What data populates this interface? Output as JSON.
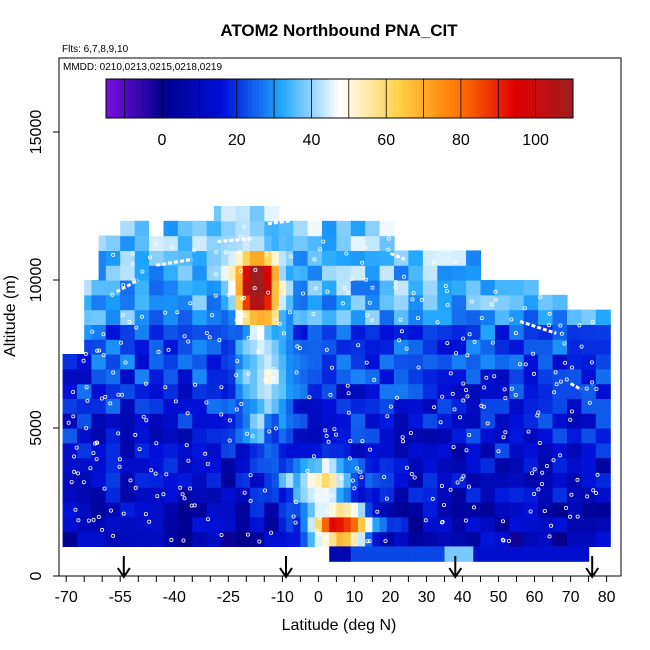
{
  "chart_data": {
    "type": "heatmap",
    "title": "ATOM2 Northbound PNA_CIT",
    "annotations": [
      "Flts: 6,7,8,9,10",
      "MMDD: 0210,0213,0215,0218,0219"
    ],
    "xlabel": "Latitude (deg N)",
    "ylabel": "Altitude (m)",
    "xlim": [
      -72,
      84
    ],
    "ylim": [
      0,
      17500
    ],
    "x_ticks": [
      -70,
      -55,
      -40,
      -25,
      -10,
      0,
      10,
      20,
      30,
      40,
      50,
      60,
      70,
      80
    ],
    "x_tick_labels": [
      "-70",
      "-55",
      "-40",
      "-25",
      "-10",
      "0",
      "10",
      "20",
      "30",
      "40",
      "50",
      "60",
      "70",
      "80"
    ],
    "y_ticks": [
      0,
      5000,
      10000,
      15000
    ],
    "y_tick_labels": [
      "0",
      "5000",
      "10000",
      "15000"
    ],
    "colorbar": {
      "range": [
        -15,
        110
      ],
      "ticks": [
        0,
        20,
        40,
        60,
        80,
        100
      ],
      "tick_labels": [
        "0",
        "20",
        "40",
        "60",
        "80",
        "100"
      ],
      "colors": [
        "#7c10e0",
        "#00008c",
        "#0010d8",
        "#1fa6ff",
        "#ffffff",
        "#ffd24a",
        "#ff7a00",
        "#e00000",
        "#9e1e1e"
      ]
    },
    "profile_arrows_lat": [
      -54,
      -9,
      38,
      76
    ],
    "altitude_bins_m": [
      1000,
      1500,
      2000,
      2500,
      3000,
      3500,
      4000,
      4500,
      5000,
      5500,
      6000,
      6500,
      7000,
      7500,
      8000,
      8500,
      9000,
      9500,
      10000,
      10500,
      11000,
      11500,
      12000
    ],
    "grid": "off",
    "legend": "colorbar at top, inside plot"
  }
}
